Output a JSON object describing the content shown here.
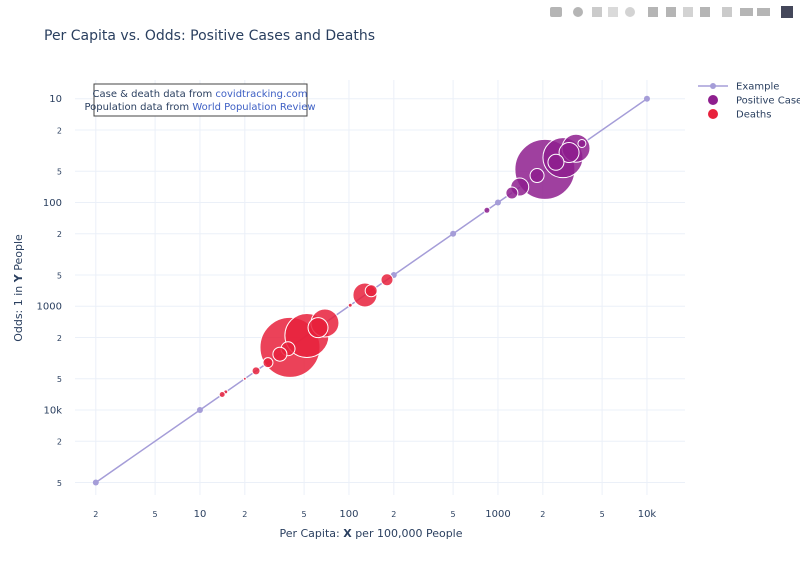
{
  "chart_data": {
    "type": "scatter",
    "title": "Per Capita vs. Odds: Positive Cases and Deaths",
    "xlabel_parts": [
      "Per Capita:",
      "X",
      "per 100,000 People"
    ],
    "ylabel_parts": [
      "Odds: 1 in",
      "Y",
      "People"
    ],
    "x_log": true,
    "y_log": true,
    "grid": true,
    "legend": "top-right",
    "xlim": [
      1.45,
      18000
    ],
    "ylim": [
      66000,
      6.6
    ],
    "xticks": [
      2,
      5,
      10,
      {
        "value": 20,
        "label": "2"
      },
      {
        "value": 50,
        "label": "5"
      },
      100,
      {
        "value": 200,
        "label": "2"
      },
      {
        "value": 500,
        "label": "5"
      },
      1000,
      {
        "value": 2000,
        "label": "2"
      },
      {
        "value": 5000,
        "label": "5"
      },
      {
        "value": 10000,
        "label": "10k"
      }
    ],
    "yticks": [
      10,
      {
        "value": 20,
        "label": "2"
      },
      {
        "value": 50,
        "label": "5"
      },
      100,
      {
        "value": 200,
        "label": "2"
      },
      {
        "value": 500,
        "label": "5"
      },
      1000,
      {
        "value": 2000,
        "label": "2"
      },
      {
        "value": 5000,
        "label": "5"
      },
      {
        "value": 10000,
        "label": "10k"
      },
      {
        "value": 20000,
        "label": "2"
      },
      {
        "value": 50000,
        "label": "5"
      }
    ],
    "annotation": [
      {
        "text": "Case & death data from",
        "link": "covidtracking.com"
      },
      {
        "text": "Population data from",
        "link": "World Population Review"
      }
    ],
    "series": [
      {
        "name": "Example",
        "color": "#a59dd8",
        "mode": "lines+markers",
        "x": [
          2,
          10,
          200,
          500,
          1000,
          10000
        ],
        "y": [
          50000,
          10000,
          500,
          200,
          100,
          10
        ]
      },
      {
        "name": "Positive Cases",
        "color": "#8e1f8e",
        "mode": "markers",
        "x": [
          2065,
          2730,
          3340,
          3000,
          3660,
          2450,
          1830,
          1400,
          1240,
          843
        ],
        "y": [
          48,
          37,
          30,
          33,
          27,
          41,
          55,
          71,
          81,
          119
        ],
        "sizes": [
          60,
          40,
          28,
          20,
          8,
          16,
          14,
          18,
          12,
          6
        ]
      },
      {
        "name": "Deaths",
        "color": "#e8213c",
        "mode": "markers",
        "x": [
          40.2,
          52.2,
          69,
          62,
          39,
          34.4,
          28.6,
          23.8,
          20,
          14.9,
          14.1,
          128,
          141,
          180,
          102
        ],
        "y": [
          2490,
          1915,
          1450,
          1610,
          2570,
          2900,
          3500,
          4200,
          5000,
          6700,
          7100,
          780,
          710,
          556,
          980
        ],
        "sizes": [
          60,
          44,
          28,
          20,
          14,
          14,
          10,
          8,
          3,
          4,
          6,
          24,
          12,
          12,
          4
        ]
      }
    ]
  }
}
